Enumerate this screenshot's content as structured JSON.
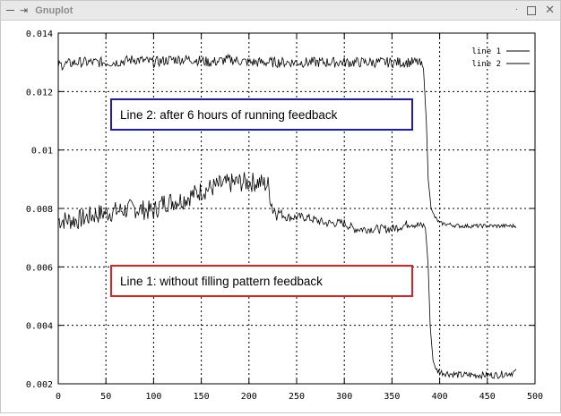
{
  "window": {
    "title": "Gnuplot",
    "controls": {
      "left": [
        "minimize-line-icon",
        "pin-icon"
      ],
      "right": [
        "menu-dot-icon",
        "maximize-icon",
        "close-icon"
      ]
    }
  },
  "chart_data": {
    "type": "line",
    "title": "",
    "xlabel": "",
    "ylabel": "",
    "xlim": [
      0,
      500
    ],
    "ylim": [
      0.002,
      0.014
    ],
    "grid": true,
    "legend_position": "top-right",
    "x_ticks": [
      "0",
      "50",
      "100",
      "150",
      "200",
      "250",
      "300",
      "350",
      "400",
      "450",
      "500"
    ],
    "y_ticks": [
      "0.002",
      "0.004",
      "0.006",
      "0.008",
      "0.01",
      "0.012",
      "0.014"
    ],
    "series": [
      {
        "name": "line 1",
        "color": "#000000",
        "x": [
          0,
          20,
          40,
          60,
          80,
          100,
          110,
          130,
          150,
          170,
          190,
          210,
          220,
          225,
          240,
          260,
          280,
          300,
          310,
          330,
          350,
          370,
          380,
          385,
          388,
          390,
          393,
          396,
          400,
          420,
          440,
          460,
          480
        ],
        "values": [
          0.0076,
          0.0076,
          0.0078,
          0.0079,
          0.008,
          0.0079,
          0.0082,
          0.0083,
          0.0086,
          0.0088,
          0.0089,
          0.0089,
          0.0088,
          0.008,
          0.0077,
          0.0077,
          0.0075,
          0.0075,
          0.0073,
          0.0073,
          0.0073,
          0.0075,
          0.0074,
          0.0074,
          0.006,
          0.004,
          0.0028,
          0.0025,
          0.0024,
          0.0023,
          0.0023,
          0.0023,
          0.0024
        ]
      },
      {
        "name": "line 2",
        "color": "#000000",
        "x": [
          0,
          20,
          40,
          60,
          80,
          100,
          120,
          140,
          160,
          180,
          200,
          220,
          240,
          260,
          280,
          300,
          320,
          340,
          360,
          378,
          383,
          386,
          388,
          391,
          395,
          400,
          420,
          440,
          460,
          480
        ],
        "values": [
          0.0129,
          0.013,
          0.013,
          0.013,
          0.0131,
          0.013,
          0.0131,
          0.0131,
          0.013,
          0.0131,
          0.013,
          0.013,
          0.013,
          0.013,
          0.013,
          0.013,
          0.013,
          0.013,
          0.013,
          0.013,
          0.0128,
          0.011,
          0.009,
          0.008,
          0.0077,
          0.0075,
          0.0074,
          0.0074,
          0.0074,
          0.0074
        ]
      }
    ],
    "annotations": [
      {
        "text": "Line 2:  after 6 hours of running feedback",
        "border_color": "#1a1acc"
      },
      {
        "text": "Line 1:  without filling pattern feedback",
        "border_color": "#dd2222"
      }
    ]
  }
}
